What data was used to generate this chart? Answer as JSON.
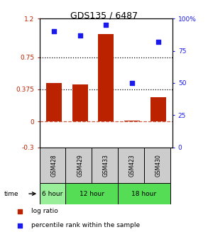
{
  "title": "GDS135 / 6487",
  "samples": [
    "GSM428",
    "GSM429",
    "GSM433",
    "GSM423",
    "GSM430"
  ],
  "log_ratio": [
    0.45,
    0.43,
    1.02,
    0.01,
    0.28
  ],
  "percentile": [
    90,
    87,
    95,
    50,
    82
  ],
  "ylim_left": [
    -0.3,
    1.2
  ],
  "ylim_right": [
    0,
    100
  ],
  "left_ticks": [
    -0.3,
    0,
    0.375,
    0.75,
    1.2
  ],
  "left_tick_labels": [
    "-0.3",
    "0",
    "0.375",
    "0.75",
    "1.2"
  ],
  "right_ticks": [
    0,
    25,
    50,
    75,
    100
  ],
  "right_tick_labels": [
    "0",
    "25",
    "50",
    "75",
    "100%"
  ],
  "dotted_lines": [
    0.75,
    0.375
  ],
  "bar_color": "#bb2200",
  "dot_color": "#1a1aee",
  "sample_box_color": "#cccccc",
  "time_groups": [
    {
      "label": "6 hour",
      "indices": [
        0
      ],
      "color": "#99ee99"
    },
    {
      "label": "12 hour",
      "indices": [
        1,
        2
      ],
      "color": "#55dd55"
    },
    {
      "label": "18 hour",
      "indices": [
        3,
        4
      ],
      "color": "#55dd55"
    }
  ],
  "legend": [
    {
      "color": "#bb2200",
      "label": "log ratio"
    },
    {
      "color": "#1a1aee",
      "label": "percentile rank within the sample"
    }
  ]
}
